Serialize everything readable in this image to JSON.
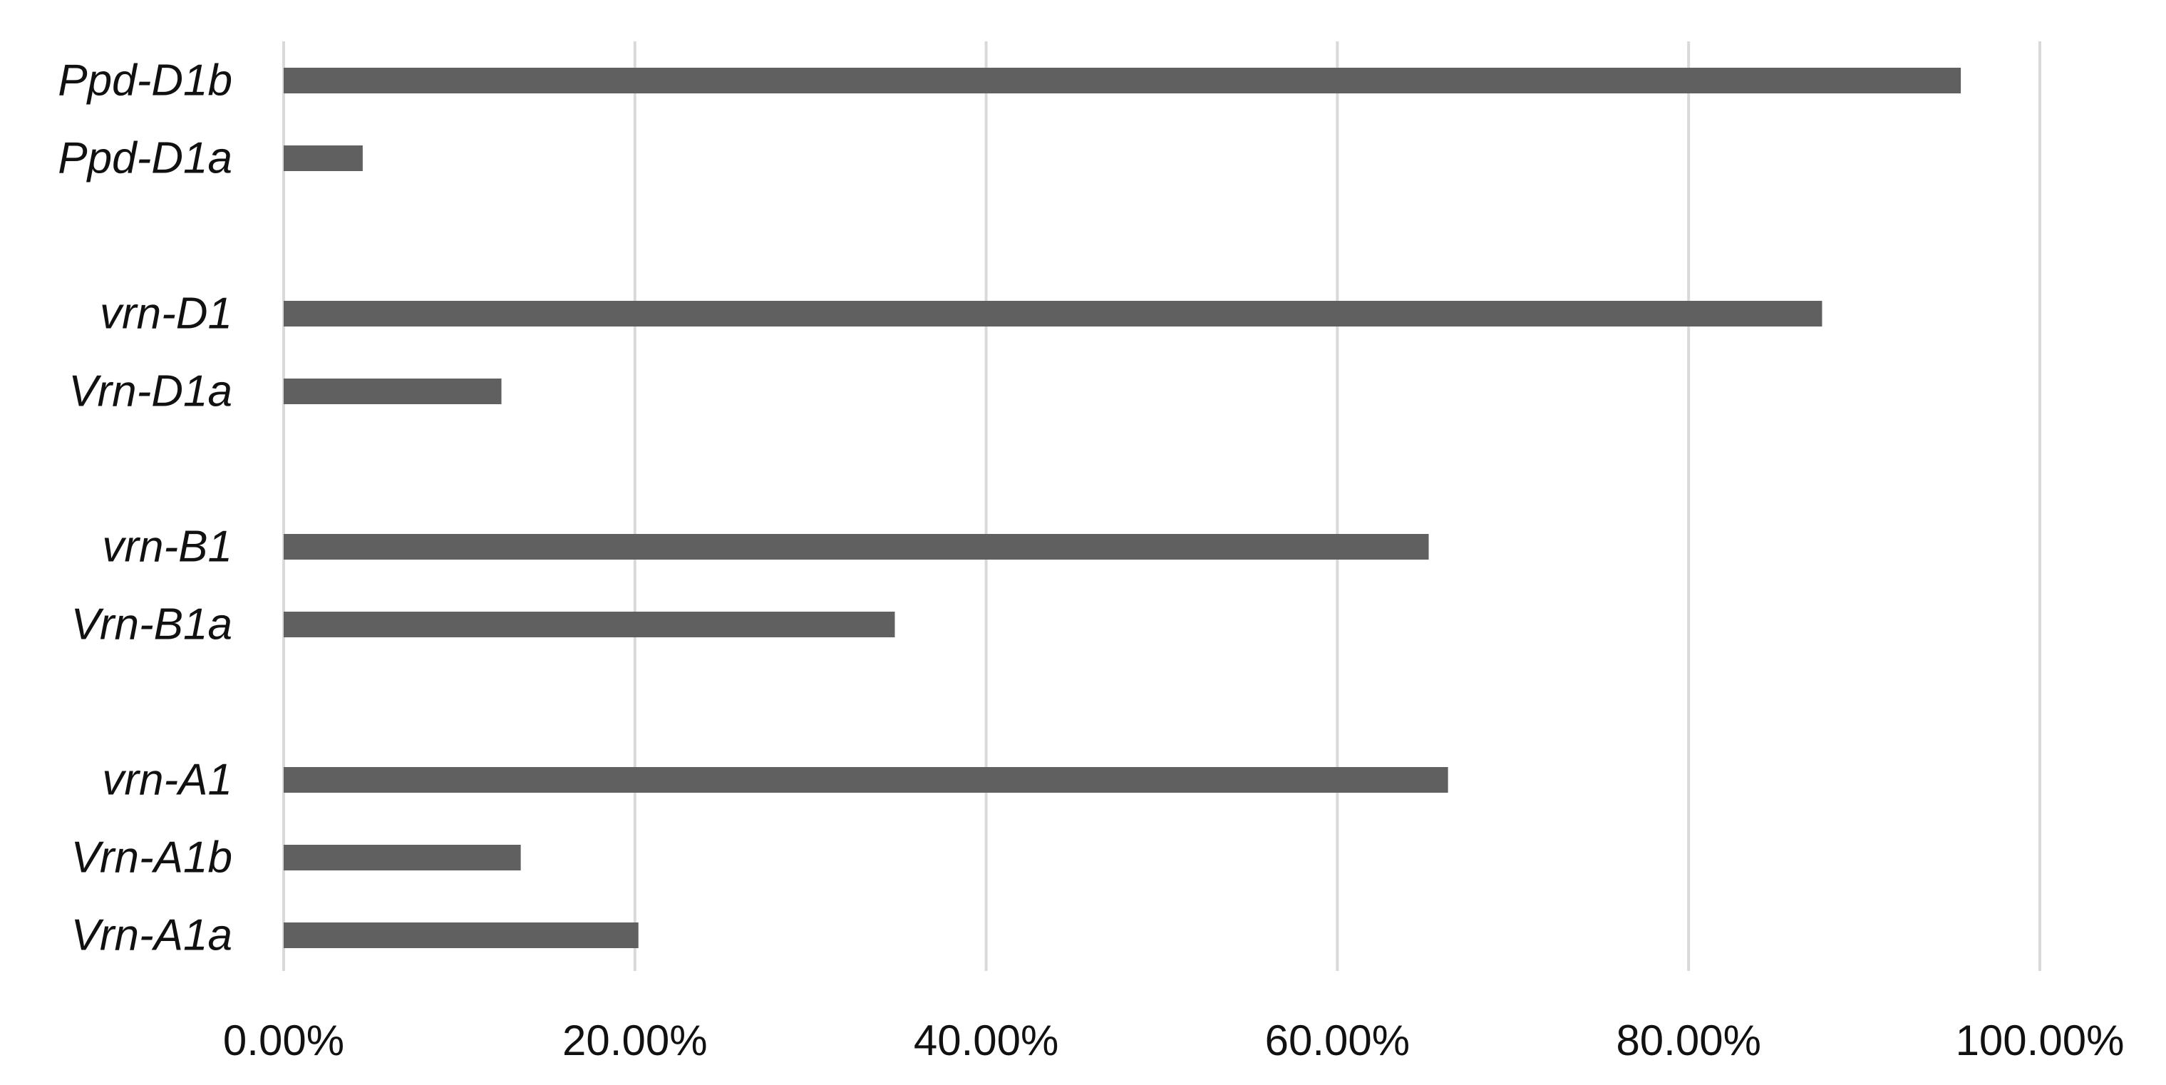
{
  "chart_data": {
    "type": "bar",
    "orientation": "horizontal",
    "categories": [
      "Ppd-D1b",
      "Ppd-D1a",
      "vrn-D1",
      "Vrn-D1a",
      "vrn-B1",
      "Vrn-B1a",
      "vrn-A1",
      "Vrn-A1b",
      "Vrn-A1a"
    ],
    "values": [
      95.5,
      4.5,
      87.6,
      12.4,
      65.2,
      34.8,
      66.3,
      13.5,
      20.2
    ],
    "groups": [
      [
        "Ppd-D1b",
        "Ppd-D1a"
      ],
      [
        "vrn-D1",
        "Vrn-D1a"
      ],
      [
        "vrn-B1",
        "Vrn-B1a"
      ],
      [
        "vrn-A1",
        "Vrn-A1b",
        "Vrn-A1a"
      ]
    ],
    "x_ticks": [
      "0.00%",
      "20.00%",
      "40.00%",
      "60.00%",
      "80.00%",
      "100.00%"
    ],
    "x_tick_values": [
      0,
      20,
      40,
      60,
      80,
      100
    ],
    "xlim": [
      0,
      100
    ],
    "title": "",
    "xlabel": "",
    "ylabel": "",
    "grid": "vertical",
    "legend": "none",
    "bar_color": "#606060",
    "grid_color": "#d9d9d9",
    "text_color": "#111111"
  }
}
